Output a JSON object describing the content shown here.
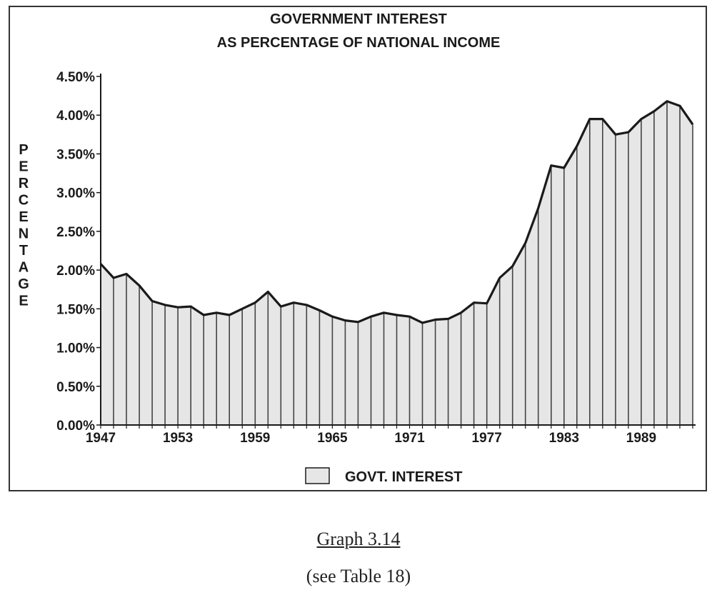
{
  "chart_data": {
    "type": "area",
    "title": "GOVERNMENT INTEREST",
    "subtitle": "AS PERCENTAGE OF NATIONAL INCOME",
    "ylabel": "PERCENTAGE",
    "xlabel": "",
    "x": [
      1947,
      1948,
      1949,
      1950,
      1951,
      1952,
      1953,
      1954,
      1955,
      1956,
      1957,
      1958,
      1959,
      1960,
      1961,
      1962,
      1963,
      1964,
      1965,
      1966,
      1967,
      1968,
      1969,
      1970,
      1971,
      1972,
      1973,
      1974,
      1975,
      1976,
      1977,
      1978,
      1979,
      1980,
      1981,
      1982,
      1983,
      1984,
      1985,
      1986,
      1987,
      1988,
      1989,
      1990,
      1991,
      1992,
      1993
    ],
    "series": [
      {
        "name": "GOVT. INTEREST",
        "values": [
          2.08,
          1.9,
          1.95,
          1.8,
          1.6,
          1.55,
          1.52,
          1.53,
          1.42,
          1.45,
          1.42,
          1.5,
          1.58,
          1.72,
          1.53,
          1.58,
          1.55,
          1.48,
          1.4,
          1.35,
          1.33,
          1.4,
          1.45,
          1.42,
          1.4,
          1.32,
          1.36,
          1.37,
          1.45,
          1.58,
          1.57,
          1.9,
          2.05,
          2.35,
          2.8,
          3.35,
          3.32,
          3.6,
          3.95,
          3.95,
          3.75,
          3.78,
          3.95,
          4.05,
          4.18,
          4.12,
          3.88
        ]
      }
    ],
    "xticks": [
      "1947",
      "1953",
      "1959",
      "1965",
      "1971",
      "1977",
      "1983",
      "1989"
    ],
    "yticks": [
      "0.00%",
      "0.50%",
      "1.00%",
      "1.50%",
      "2.00%",
      "2.50%",
      "3.00%",
      "3.50%",
      "4.00%",
      "4.50%"
    ],
    "ylim": [
      0,
      4.5
    ],
    "xlim": [
      1947,
      1993
    ],
    "grid": false,
    "legend_position": "bottom-center",
    "colors": {
      "fill": "#e6e6e6",
      "line": "#1a1a1a",
      "axis": "#1a1a1a"
    }
  },
  "caption": "Graph 3.14",
  "subcaption": "(see Table 18)"
}
